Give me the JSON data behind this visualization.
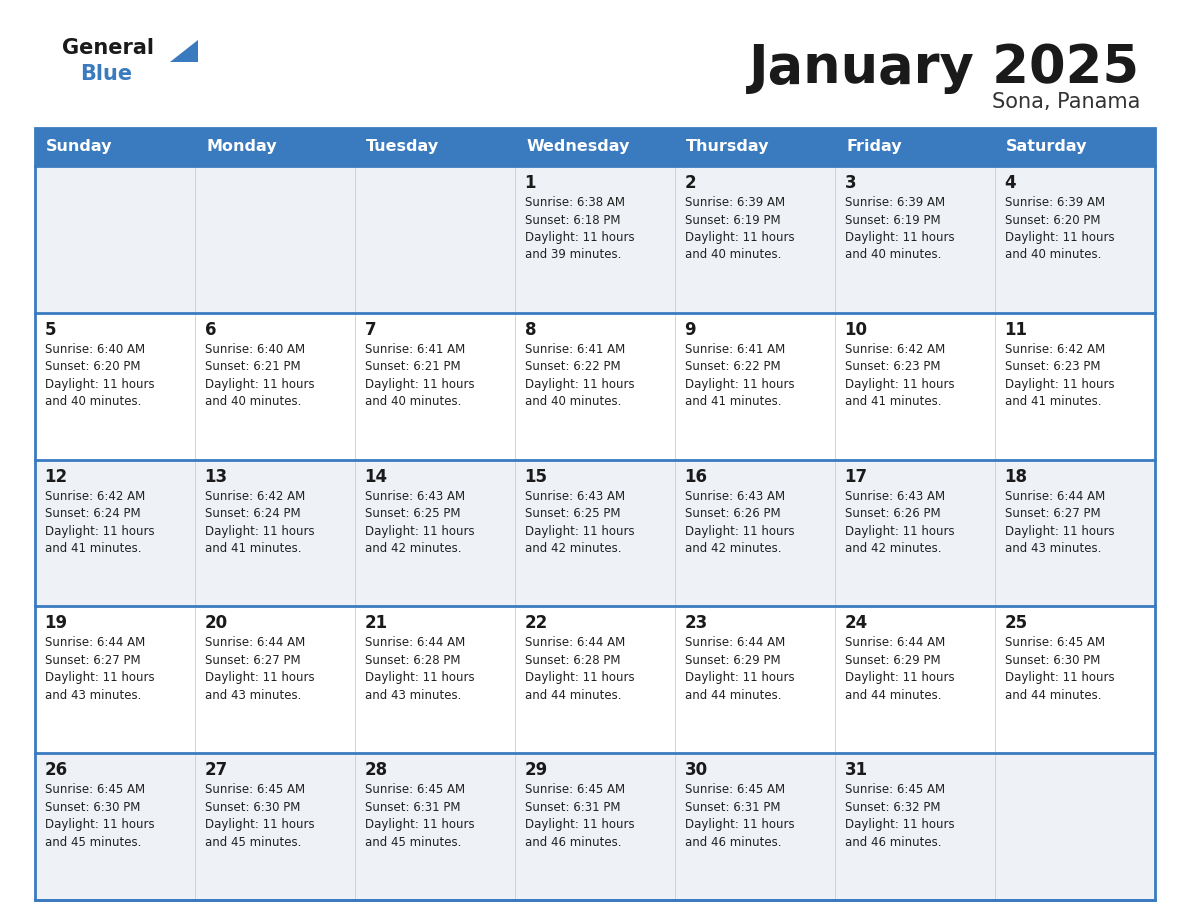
{
  "title": "January 2025",
  "subtitle": "Sona, Panama",
  "days_of_week": [
    "Sunday",
    "Monday",
    "Tuesday",
    "Wednesday",
    "Thursday",
    "Friday",
    "Saturday"
  ],
  "header_bg": "#3a7abf",
  "header_text": "#ffffff",
  "row_bg_odd": "#eef2f7",
  "row_bg_even": "#ffffff",
  "border_color": "#3a7abf",
  "day_number_color": "#1a1a1a",
  "cell_text_color": "#222222",
  "title_color": "#1a1a1a",
  "subtitle_color": "#333333",
  "logo_general_color": "#1a1a1a",
  "logo_blue_color": "#3a7abf",
  "logo_triangle_color": "#3a7abf",
  "calendar_data": [
    [
      null,
      null,
      null,
      {
        "day": 1,
        "sunrise": "6:38 AM",
        "sunset": "6:18 PM",
        "daylight": "11 hours and 39 minutes"
      },
      {
        "day": 2,
        "sunrise": "6:39 AM",
        "sunset": "6:19 PM",
        "daylight": "11 hours and 40 minutes"
      },
      {
        "day": 3,
        "sunrise": "6:39 AM",
        "sunset": "6:19 PM",
        "daylight": "11 hours and 40 minutes"
      },
      {
        "day": 4,
        "sunrise": "6:39 AM",
        "sunset": "6:20 PM",
        "daylight": "11 hours and 40 minutes"
      }
    ],
    [
      {
        "day": 5,
        "sunrise": "6:40 AM",
        "sunset": "6:20 PM",
        "daylight": "11 hours and 40 minutes"
      },
      {
        "day": 6,
        "sunrise": "6:40 AM",
        "sunset": "6:21 PM",
        "daylight": "11 hours and 40 minutes"
      },
      {
        "day": 7,
        "sunrise": "6:41 AM",
        "sunset": "6:21 PM",
        "daylight": "11 hours and 40 minutes"
      },
      {
        "day": 8,
        "sunrise": "6:41 AM",
        "sunset": "6:22 PM",
        "daylight": "11 hours and 40 minutes"
      },
      {
        "day": 9,
        "sunrise": "6:41 AM",
        "sunset": "6:22 PM",
        "daylight": "11 hours and 41 minutes"
      },
      {
        "day": 10,
        "sunrise": "6:42 AM",
        "sunset": "6:23 PM",
        "daylight": "11 hours and 41 minutes"
      },
      {
        "day": 11,
        "sunrise": "6:42 AM",
        "sunset": "6:23 PM",
        "daylight": "11 hours and 41 minutes"
      }
    ],
    [
      {
        "day": 12,
        "sunrise": "6:42 AM",
        "sunset": "6:24 PM",
        "daylight": "11 hours and 41 minutes"
      },
      {
        "day": 13,
        "sunrise": "6:42 AM",
        "sunset": "6:24 PM",
        "daylight": "11 hours and 41 minutes"
      },
      {
        "day": 14,
        "sunrise": "6:43 AM",
        "sunset": "6:25 PM",
        "daylight": "11 hours and 42 minutes"
      },
      {
        "day": 15,
        "sunrise": "6:43 AM",
        "sunset": "6:25 PM",
        "daylight": "11 hours and 42 minutes"
      },
      {
        "day": 16,
        "sunrise": "6:43 AM",
        "sunset": "6:26 PM",
        "daylight": "11 hours and 42 minutes"
      },
      {
        "day": 17,
        "sunrise": "6:43 AM",
        "sunset": "6:26 PM",
        "daylight": "11 hours and 42 minutes"
      },
      {
        "day": 18,
        "sunrise": "6:44 AM",
        "sunset": "6:27 PM",
        "daylight": "11 hours and 43 minutes"
      }
    ],
    [
      {
        "day": 19,
        "sunrise": "6:44 AM",
        "sunset": "6:27 PM",
        "daylight": "11 hours and 43 minutes"
      },
      {
        "day": 20,
        "sunrise": "6:44 AM",
        "sunset": "6:27 PM",
        "daylight": "11 hours and 43 minutes"
      },
      {
        "day": 21,
        "sunrise": "6:44 AM",
        "sunset": "6:28 PM",
        "daylight": "11 hours and 43 minutes"
      },
      {
        "day": 22,
        "sunrise": "6:44 AM",
        "sunset": "6:28 PM",
        "daylight": "11 hours and 44 minutes"
      },
      {
        "day": 23,
        "sunrise": "6:44 AM",
        "sunset": "6:29 PM",
        "daylight": "11 hours and 44 minutes"
      },
      {
        "day": 24,
        "sunrise": "6:44 AM",
        "sunset": "6:29 PM",
        "daylight": "11 hours and 44 minutes"
      },
      {
        "day": 25,
        "sunrise": "6:45 AM",
        "sunset": "6:30 PM",
        "daylight": "11 hours and 44 minutes"
      }
    ],
    [
      {
        "day": 26,
        "sunrise": "6:45 AM",
        "sunset": "6:30 PM",
        "daylight": "11 hours and 45 minutes"
      },
      {
        "day": 27,
        "sunrise": "6:45 AM",
        "sunset": "6:30 PM",
        "daylight": "11 hours and 45 minutes"
      },
      {
        "day": 28,
        "sunrise": "6:45 AM",
        "sunset": "6:31 PM",
        "daylight": "11 hours and 45 minutes"
      },
      {
        "day": 29,
        "sunrise": "6:45 AM",
        "sunset": "6:31 PM",
        "daylight": "11 hours and 46 minutes"
      },
      {
        "day": 30,
        "sunrise": "6:45 AM",
        "sunset": "6:31 PM",
        "daylight": "11 hours and 46 minutes"
      },
      {
        "day": 31,
        "sunrise": "6:45 AM",
        "sunset": "6:32 PM",
        "daylight": "11 hours and 46 minutes"
      },
      null
    ]
  ]
}
